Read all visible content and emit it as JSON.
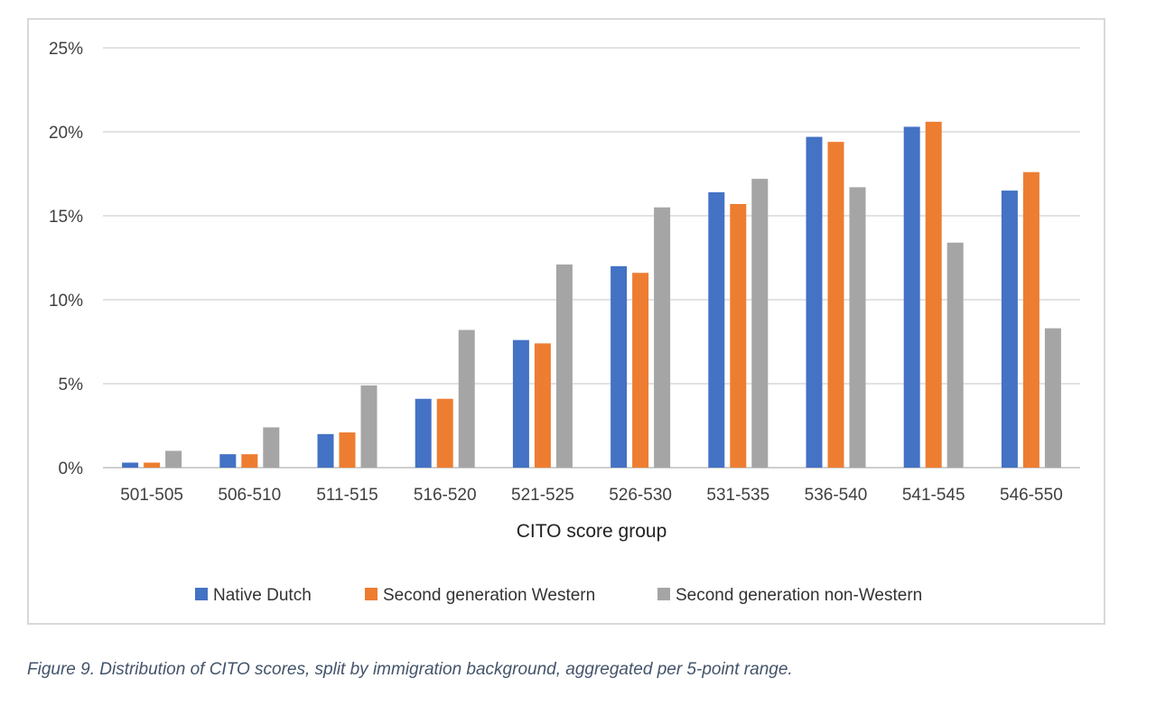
{
  "caption": "Figure 9. Distribution of CITO scores, split by immigration background, aggregated per 5-point range.",
  "chart_data": {
    "type": "bar",
    "title": "",
    "xlabel": "CITO score group",
    "ylabel": "",
    "categories": [
      "501-505",
      "506-510",
      "511-515",
      "516-520",
      "521-525",
      "526-530",
      "531-535",
      "536-540",
      "541-545",
      "546-550"
    ],
    "yticks": [
      "0%",
      "5%",
      "10%",
      "15%",
      "20%",
      "25%"
    ],
    "ylim": [
      0,
      25
    ],
    "grid": true,
    "legend_position": "bottom",
    "series": [
      {
        "name": "Native Dutch",
        "color": "#4472c4",
        "values": [
          0.3,
          0.8,
          2.0,
          4.1,
          7.6,
          12.0,
          16.4,
          19.7,
          20.3,
          16.5
        ]
      },
      {
        "name": "Second generation Western",
        "color": "#ed7d31",
        "values": [
          0.3,
          0.8,
          2.1,
          4.1,
          7.4,
          11.6,
          15.7,
          19.4,
          20.6,
          17.6
        ]
      },
      {
        "name": "Second generation non-Western",
        "color": "#a5a5a5",
        "values": [
          1.0,
          2.4,
          4.9,
          8.2,
          12.1,
          15.5,
          17.2,
          16.7,
          13.4,
          8.3
        ]
      }
    ]
  }
}
